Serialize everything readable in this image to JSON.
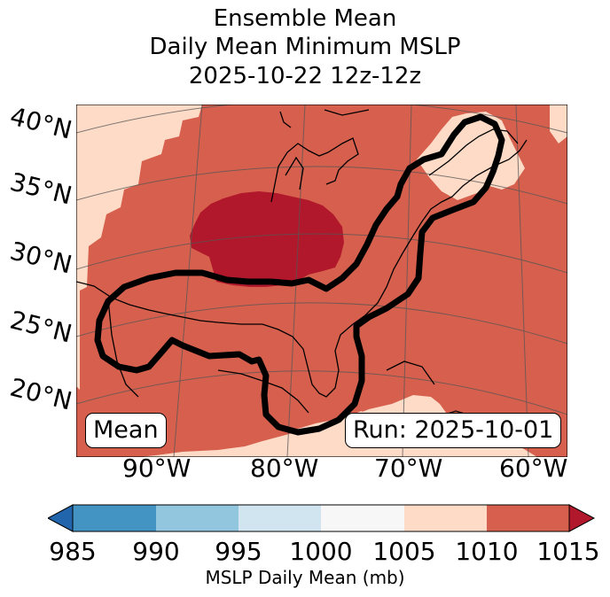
{
  "title": {
    "line1": "Ensemble Mean",
    "line2": "Daily Mean Minimum MSLP",
    "line3": "2025-10-22 12z-12z"
  },
  "map": {
    "latitude_labels": [
      "40°N",
      "35°N",
      "30°N",
      "25°N",
      "20°N"
    ],
    "longitude_labels": [
      "90°W",
      "80°W",
      "70°W",
      "60°W"
    ],
    "colors": {
      "ocean_background": "#d7604d",
      "low_center": "#b2182b",
      "light_region": "#fddbc7",
      "contour": "#000000",
      "coastline": "#000000"
    }
  },
  "labels": {
    "mean": "Mean",
    "run": "Run: 2025-10-01"
  },
  "colorbar": {
    "ticks": [
      "985",
      "990",
      "995",
      "1000",
      "1005",
      "1010",
      "1015"
    ],
    "segment_colors": [
      "#4393c3",
      "#92c5de",
      "#d1e5f0",
      "#f7f7f7",
      "#fddbc7",
      "#d6604d"
    ],
    "under_color": "#2166ac",
    "over_color": "#b2182b",
    "label": "MSLP Daily Mean (mb)"
  }
}
